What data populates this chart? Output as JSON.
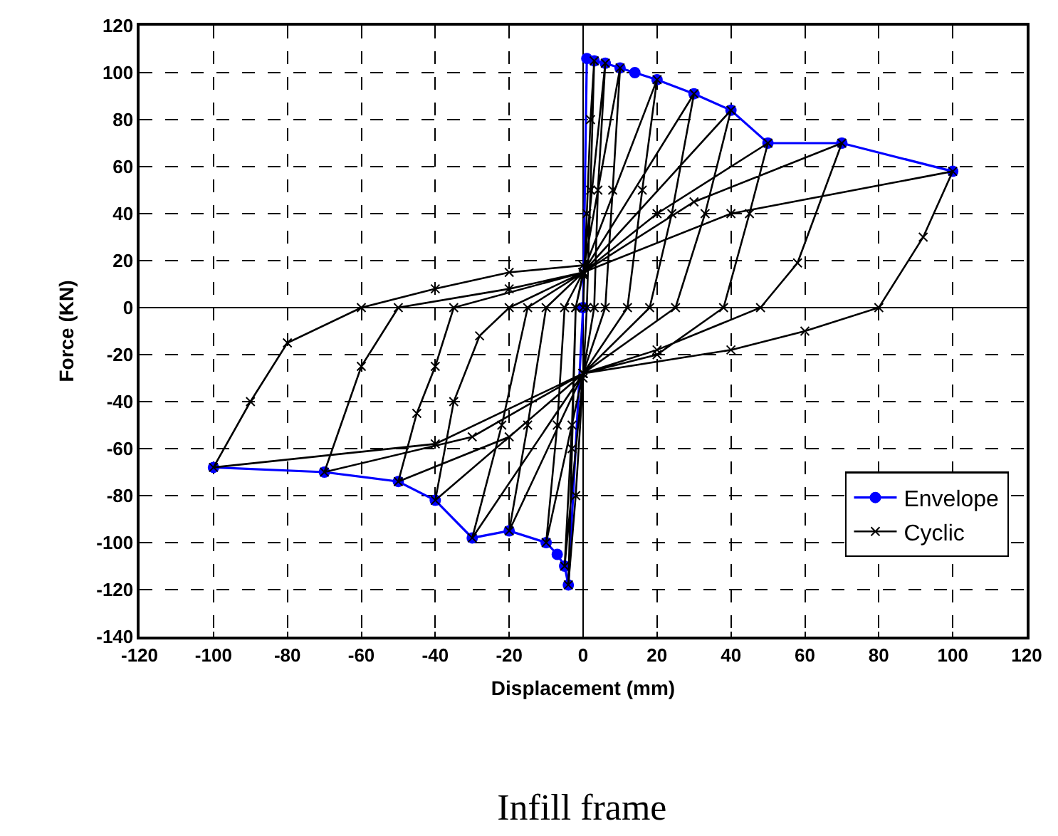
{
  "chart_data": {
    "type": "line",
    "title": "Infill frame",
    "xlabel": "Displacement (mm)",
    "ylabel": "Force (KN)",
    "xlim": [
      -120,
      120
    ],
    "xticks": [
      -120,
      -100,
      -80,
      -60,
      -40,
      -20,
      0,
      20,
      40,
      60,
      80,
      100,
      120
    ],
    "ylim": [
      -140,
      120
    ],
    "yticks": [
      -140,
      -120,
      -100,
      -80,
      -60,
      -40,
      -20,
      0,
      20,
      40,
      60,
      80,
      100,
      120
    ],
    "grid": true,
    "legend": "bottom right",
    "line_style": "solid",
    "series": [
      {
        "name": "Envelope",
        "color": "#0000ff",
        "marker": "circle",
        "x": [
          -100,
          -70,
          -50,
          -40,
          -30,
          -20,
          -10,
          -7,
          -5,
          -4,
          0,
          1,
          3,
          6,
          10,
          14,
          20,
          30,
          40,
          50,
          70,
          100
        ],
        "values": [
          -68,
          -70,
          -74,
          -82,
          -98,
          -95,
          -100,
          -105,
          -110,
          -118,
          0,
          106,
          105,
          104,
          102,
          100,
          97,
          91,
          84,
          70,
          70,
          58
        ]
      },
      {
        "name": "Cyclic",
        "color": "#000000",
        "marker": "cross",
        "x": [
          0,
          1,
          2,
          3,
          2,
          1,
          0,
          -2,
          -4,
          -3,
          -2,
          0,
          6,
          4,
          3,
          0,
          -5,
          -3,
          -2,
          0,
          10,
          8,
          6,
          0,
          -10,
          -7,
          -5,
          0,
          20,
          16,
          12,
          0,
          -20,
          -15,
          -10,
          0,
          30,
          24,
          18,
          0,
          -30,
          -22,
          -15,
          0,
          40,
          33,
          25,
          0,
          -40,
          -35,
          -28,
          -20,
          0,
          20,
          50,
          45,
          38,
          20,
          0,
          -20,
          -50,
          -45,
          -40,
          -35,
          0,
          30,
          70,
          58,
          48,
          20,
          0,
          -30,
          -70,
          -60,
          -50,
          -20,
          0,
          40,
          100,
          92,
          80,
          60,
          40,
          0,
          -40,
          -100,
          -90,
          -80,
          -60,
          -40,
          -20,
          0
        ],
        "values": [
          0,
          40,
          80,
          105,
          50,
          0,
          -30,
          -80,
          -118,
          -60,
          0,
          14,
          104,
          50,
          0,
          -28,
          -110,
          -50,
          0,
          15,
          102,
          50,
          0,
          -28,
          -100,
          -50,
          0,
          15,
          97,
          50,
          0,
          -28,
          -95,
          -50,
          0,
          15,
          91,
          40,
          0,
          -28,
          -98,
          -50,
          0,
          15,
          84,
          40,
          0,
          -28,
          -82,
          -40,
          -12,
          0,
          15,
          40,
          70,
          40,
          0,
          -20,
          -28,
          -55,
          -74,
          -45,
          -25,
          0,
          15,
          45,
          70,
          19,
          0,
          -18,
          -28,
          -55,
          -70,
          -25,
          0,
          8,
          15,
          40,
          58,
          30,
          0,
          -10,
          -18,
          -28,
          -58,
          -68,
          -40,
          -15,
          0,
          8,
          15,
          18
        ]
      }
    ]
  }
}
